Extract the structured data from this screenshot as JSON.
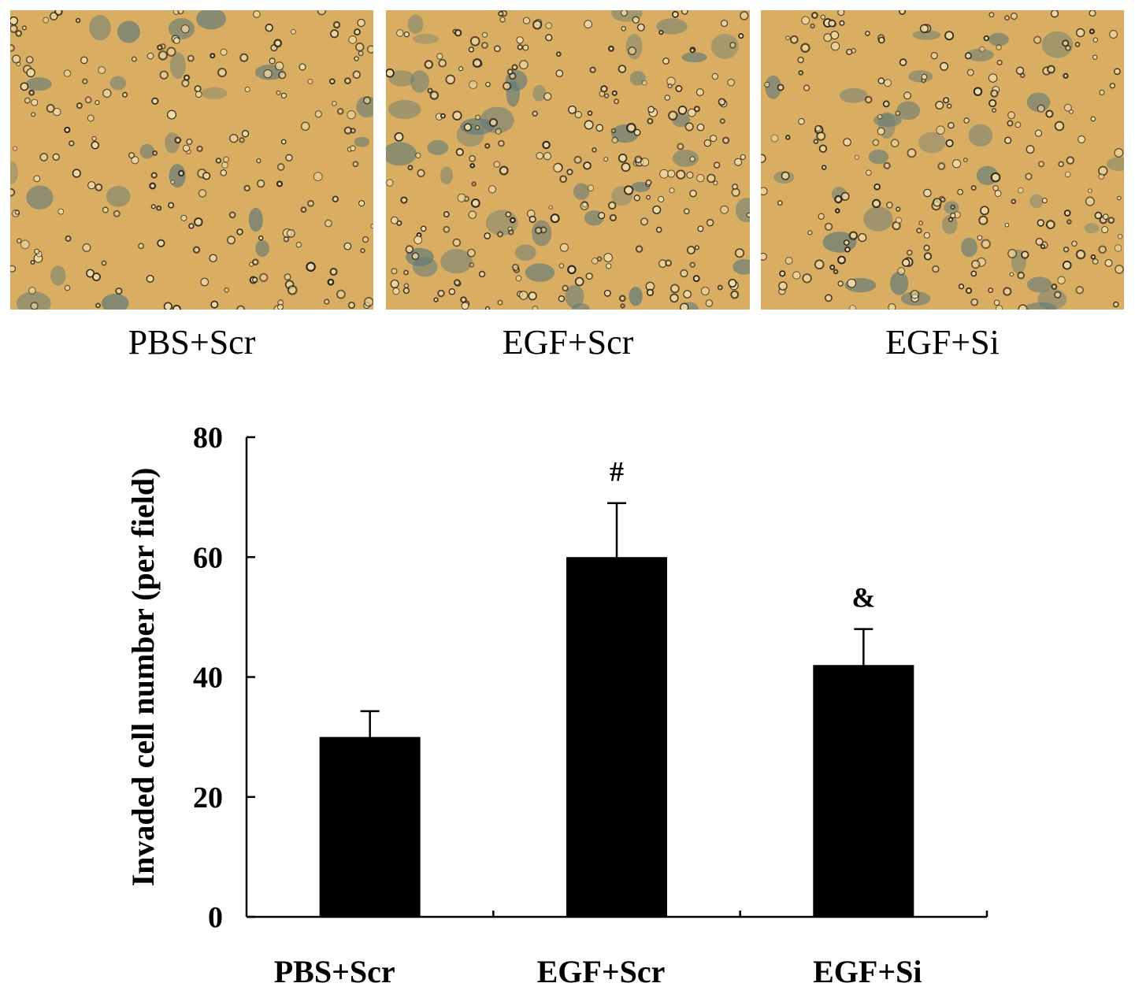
{
  "figure": {
    "panels": [
      {
        "label": "PBS+Scr"
      },
      {
        "label": "EGF+Scr"
      },
      {
        "label": "EGF+Si"
      }
    ],
    "colors": {
      "micrograph_background": "#d9ad62",
      "cell_stain": "#5f7a78",
      "cell_outline": "#2b2218",
      "bar_fill": "#000000"
    }
  },
  "chart_data": {
    "type": "bar",
    "categories": [
      "PBS+Scr",
      "EGF+Scr",
      "EGF+Si"
    ],
    "values": [
      30,
      60,
      42
    ],
    "error": [
      4.3,
      9,
      6
    ],
    "annotations": [
      "",
      "#",
      "&"
    ],
    "ylabel": "Invaded cell number (per field)",
    "xlabel": "",
    "title": "",
    "ylim": [
      0,
      80
    ],
    "yticks": [
      0,
      20,
      40,
      60,
      80
    ],
    "grid": false,
    "legend": "none"
  }
}
